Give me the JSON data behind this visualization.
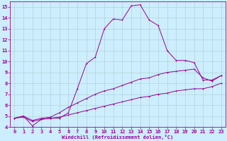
{
  "xlabel": "Windchill (Refroidissement éolien,°C)",
  "bg_color": "#cceeff",
  "line_color": "#990099",
  "grid_color": "#aacccc",
  "ylim": [
    4,
    15.5
  ],
  "xlim": [
    -0.5,
    23.5
  ],
  "yticks": [
    4,
    5,
    6,
    7,
    8,
    9,
    10,
    11,
    12,
    13,
    14,
    15
  ],
  "xticks": [
    0,
    1,
    2,
    3,
    4,
    5,
    6,
    7,
    8,
    9,
    10,
    11,
    12,
    13,
    14,
    15,
    16,
    17,
    18,
    19,
    20,
    21,
    22,
    23
  ],
  "curve1_x": [
    0,
    1,
    2,
    3,
    4,
    5,
    6,
    7,
    8,
    9,
    10,
    11,
    12,
    13,
    14,
    15,
    16,
    17,
    18,
    19,
    20,
    21,
    22,
    23
  ],
  "curve1_y": [
    4.8,
    5.0,
    4.1,
    4.7,
    4.8,
    4.8,
    5.3,
    7.5,
    9.8,
    10.4,
    13.0,
    13.9,
    13.8,
    15.1,
    15.2,
    13.8,
    13.3,
    11.0,
    10.1,
    10.1,
    9.9,
    8.3,
    8.3,
    8.7
  ],
  "curve2_x": [
    0,
    1,
    2,
    3,
    4,
    5,
    6,
    7,
    8,
    9,
    10,
    11,
    12,
    13,
    14,
    15,
    16,
    17,
    18,
    19,
    20,
    21,
    22,
    23
  ],
  "curve2_y": [
    4.8,
    5.0,
    4.6,
    4.8,
    4.9,
    5.3,
    5.8,
    6.2,
    6.6,
    7.0,
    7.3,
    7.5,
    7.8,
    8.1,
    8.4,
    8.5,
    8.8,
    9.0,
    9.1,
    9.2,
    9.3,
    8.5,
    8.2,
    8.7
  ],
  "curve3_x": [
    0,
    1,
    2,
    3,
    4,
    5,
    6,
    7,
    8,
    9,
    10,
    11,
    12,
    13,
    14,
    15,
    16,
    17,
    18,
    19,
    20,
    21,
    22,
    23
  ],
  "curve3_y": [
    4.8,
    4.9,
    4.5,
    4.7,
    4.8,
    4.9,
    5.1,
    5.3,
    5.5,
    5.7,
    5.9,
    6.1,
    6.3,
    6.5,
    6.7,
    6.8,
    7.0,
    7.1,
    7.3,
    7.4,
    7.5,
    7.5,
    7.7,
    8.0
  ],
  "tick_fontsize": 5,
  "xlabel_fontsize": 5,
  "marker_size": 2,
  "line_width": 0.7
}
